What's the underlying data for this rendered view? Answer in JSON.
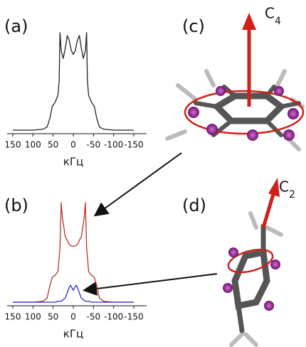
{
  "chart_data": [
    {
      "type": "line",
      "panel_label": "(a)",
      "x_label": "кГц",
      "xlim": [
        150,
        -150
      ],
      "xticks": [
        150,
        100,
        50,
        0,
        -50,
        -100,
        -150
      ],
      "ylim": [
        0,
        1
      ],
      "x": [
        150,
        100,
        75,
        65,
        58,
        52,
        45,
        38,
        35,
        33,
        30,
        25,
        20,
        15,
        10,
        5,
        0,
        -5,
        -10,
        -15,
        -20,
        -25,
        -30,
        -33,
        -35,
        -38,
        -45,
        -52,
        -58,
        -65,
        -75,
        -100,
        -150
      ],
      "series": [
        {
          "color": "#222222",
          "values": [
            0,
            0,
            0.01,
            0.03,
            0.12,
            0.24,
            0.28,
            0.35,
            0.5,
            0.98,
            0.8,
            0.72,
            0.82,
            0.95,
            0.9,
            0.8,
            0.76,
            0.8,
            0.9,
            0.95,
            0.82,
            0.72,
            0.8,
            0.98,
            0.5,
            0.35,
            0.28,
            0.24,
            0.12,
            0.03,
            0.01,
            0,
            0
          ]
        }
      ]
    },
    {
      "type": "line",
      "panel_label": "(b)",
      "x_label": "кГц",
      "xlim": [
        150,
        -150
      ],
      "xticks": [
        150,
        100,
        50,
        0,
        -50,
        -100,
        -150
      ],
      "ylim": [
        0,
        1
      ],
      "x": [
        150,
        100,
        75,
        65,
        58,
        52,
        45,
        38,
        33,
        30,
        27,
        20,
        10,
        7,
        0,
        -7,
        -10,
        -20,
        -27,
        -30,
        -33,
        -38,
        -45,
        -52,
        -58,
        -65,
        -75,
        -100,
        -150
      ],
      "series": [
        {
          "color": "#b5342a",
          "values": [
            0,
            0,
            0.01,
            0.04,
            0.17,
            0.25,
            0.27,
            0.31,
            0.55,
            1.0,
            0.85,
            0.66,
            0.58,
            0.57,
            0.56,
            0.57,
            0.58,
            0.66,
            0.85,
            1.0,
            0.55,
            0.31,
            0.27,
            0.25,
            0.17,
            0.04,
            0.01,
            0,
            0
          ]
        },
        {
          "color": "#2c2cc8",
          "values": [
            0,
            0,
            0,
            0,
            0,
            0,
            0,
            0.01,
            0.01,
            0.01,
            0.02,
            0.04,
            0.15,
            0.17,
            0.12,
            0.17,
            0.15,
            0.04,
            0.02,
            0.01,
            0.01,
            0.01,
            0,
            0,
            0,
            0,
            0,
            0,
            0
          ]
        }
      ]
    }
  ],
  "molecules": [
    {
      "panel_label": "(c)",
      "axis_symbol": "C",
      "axis_order": "4"
    },
    {
      "panel_label": "(d)",
      "axis_symbol": "C",
      "axis_order": "2"
    }
  ]
}
